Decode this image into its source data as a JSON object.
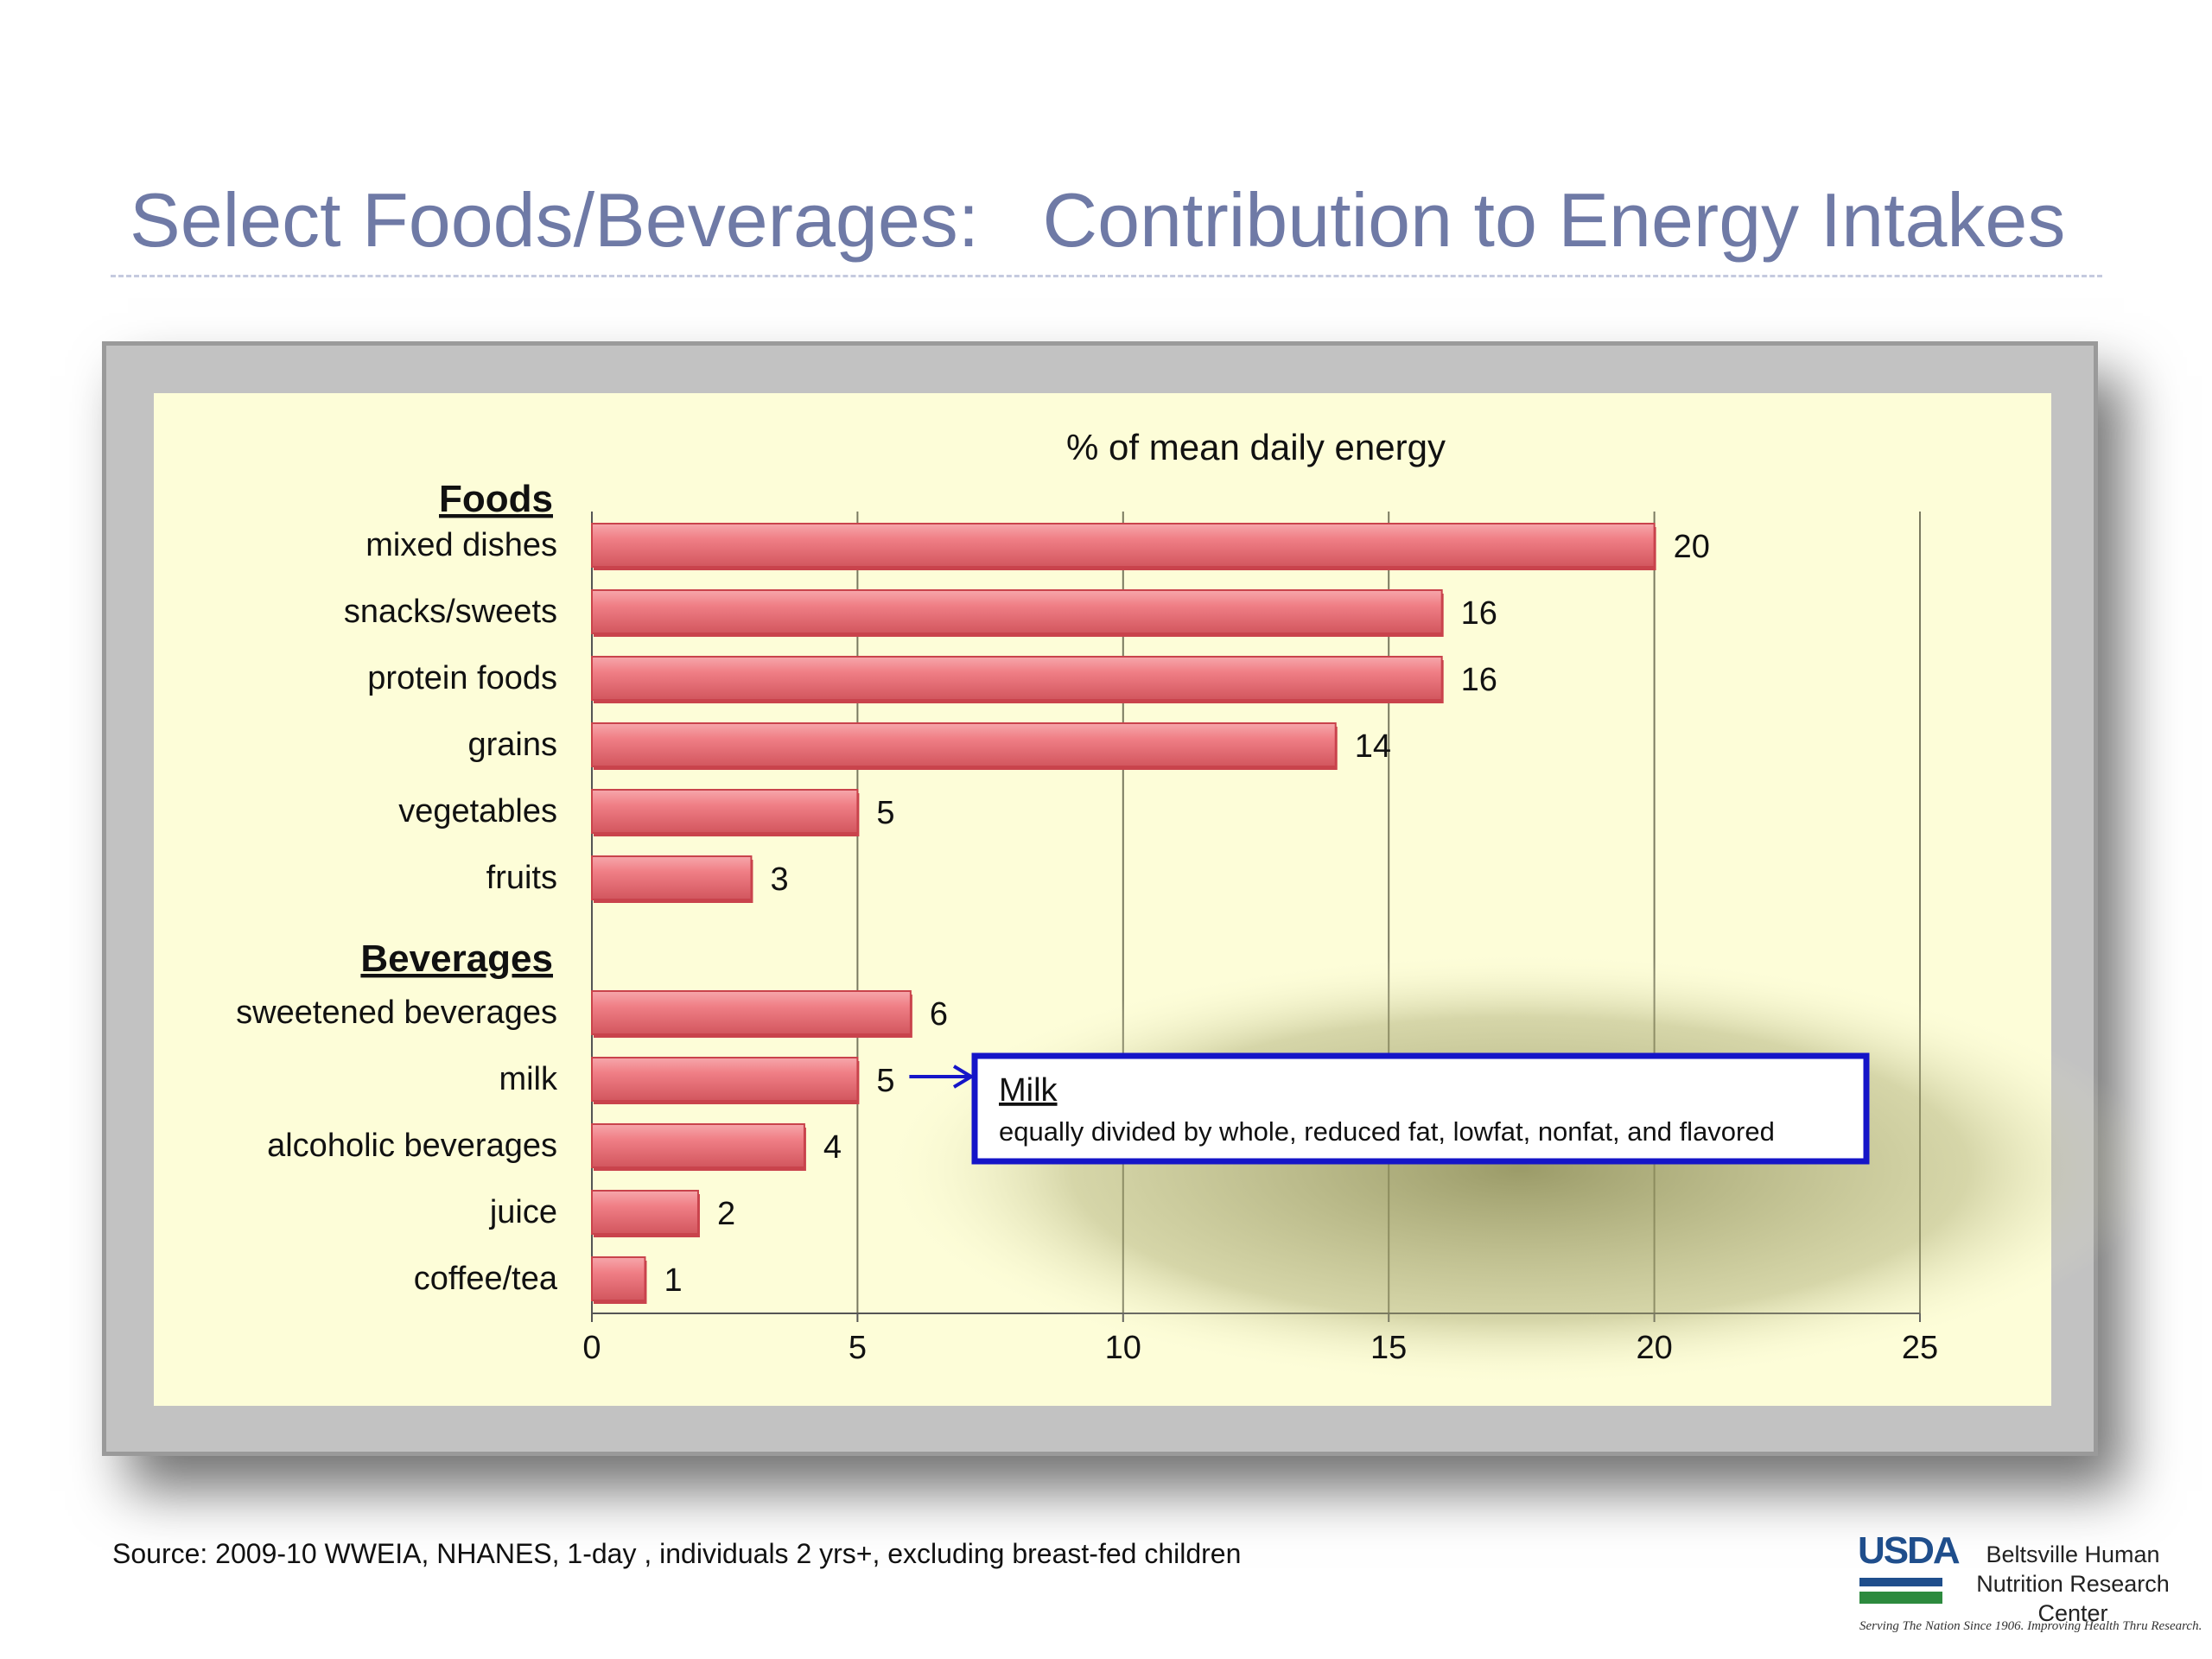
{
  "slide": {
    "title": "Select Foods/Beverages:   Contribution to Energy Intakes",
    "source": "Source:  2009-10 WWEIA, NHANES, 1-day , individuals 2 yrs+, excluding breast-fed children"
  },
  "logo": {
    "agency": "USDA",
    "center_name": "Beltsville Human Nutrition Research Center",
    "tagline": "Serving The Nation Since 1906. Improving Health Thru Research."
  },
  "callout": {
    "heading": "Milk",
    "text": "equally divided  by whole, reduced fat, lowfat, nonfat, and flavored",
    "points_to": "milk"
  },
  "colors": {
    "bar": "#f07f86",
    "bar_dark": "#c9434c",
    "plot_bg": "#fdfdd8",
    "title": "#6f7aa6",
    "callout_border": "#1515c8"
  },
  "chart_data": {
    "type": "bar",
    "orientation": "horizontal",
    "title": "% of mean daily energy",
    "xlabel": "",
    "ylabel": "",
    "xlim": [
      0,
      25
    ],
    "xticks": [
      0,
      5,
      10,
      15,
      20,
      25
    ],
    "grid": true,
    "groups": [
      {
        "name": "Foods",
        "categories": [
          "mixed dishes",
          "snacks/sweets",
          "protein foods",
          "grains",
          "vegetables",
          "fruits"
        ],
        "values": [
          20,
          16,
          16,
          14,
          5,
          3
        ]
      },
      {
        "name": "Beverages",
        "categories": [
          "sweetened beverages",
          "milk",
          "alcoholic beverages",
          "juice",
          "coffee/tea"
        ],
        "values": [
          6,
          5,
          4,
          2,
          1
        ]
      }
    ]
  }
}
